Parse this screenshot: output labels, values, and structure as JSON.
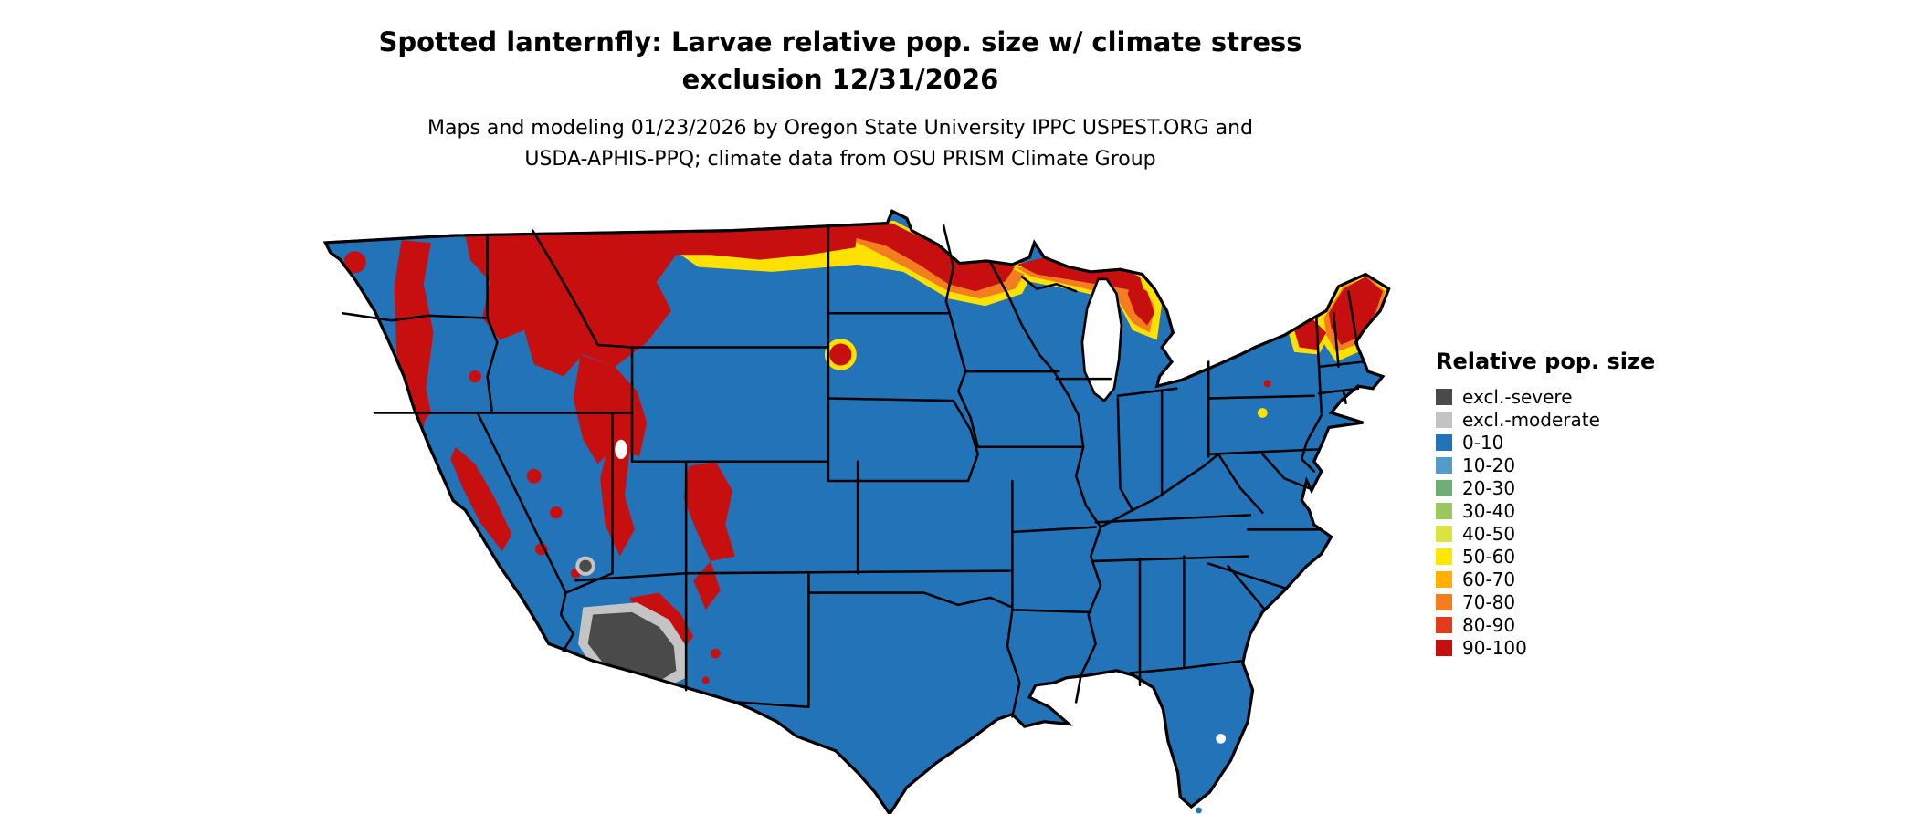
{
  "header": {
    "title_line1": "Spotted lanternfly: Larvae relative pop. size w/ climate stress",
    "title_line2": "exclusion 12/31/2026",
    "subtitle_line1": "Maps and modeling 01/23/2026 by Oregon State University IPPC USPEST.ORG and",
    "subtitle_line2": "USDA-APHIS-PPQ; climate data from OSU PRISM Climate Group"
  },
  "legend": {
    "title": "Relative pop. size",
    "items": [
      {
        "label": "excl.-severe",
        "color": "#4a4a4a"
      },
      {
        "label": "excl.-moderate",
        "color": "#c4c4c4"
      },
      {
        "label": "0-10",
        "color": "#2273b8"
      },
      {
        "label": "10-20",
        "color": "#549bc7"
      },
      {
        "label": "20-30",
        "color": "#6fae77"
      },
      {
        "label": "30-40",
        "color": "#99c95c"
      },
      {
        "label": "40-50",
        "color": "#d9e541"
      },
      {
        "label": "50-60",
        "color": "#ffe900"
      },
      {
        "label": "60-70",
        "color": "#ffb000"
      },
      {
        "label": "70-80",
        "color": "#f47d1f"
      },
      {
        "label": "80-90",
        "color": "#e23b1e"
      },
      {
        "label": "90-100",
        "color": "#c80f0f"
      }
    ]
  },
  "map": {
    "name": "Contiguous United States",
    "palette": {
      "base_fill": "#2273b8",
      "high_risk": "#c80f0f",
      "transition_orange": "#f47d1f",
      "transition_yellow": "#ffe100",
      "excl_severe": "#4a4a4a",
      "excl_moderate": "#c4c4c4",
      "water": "#ffffff",
      "state_border": "#000000"
    },
    "regions_summary": [
      {
        "area": "Central, southern and eastern US (Plains, Midwest, South, Mid-Atlantic)",
        "class": "0-10"
      },
      {
        "area": "Cascades, northern Rockies, western Montana, Yellowstone, Utah and Colorado mountains, Sierra Nevada",
        "class": "90-100"
      },
      {
        "area": "Northern Minnesota, northern Wisconsin, Upper Michigan, northern Lower Michigan",
        "class": "50-100 band"
      },
      {
        "area": "Adirondacks, Vermont, New Hampshire, Maine",
        "class": "50-100 band"
      },
      {
        "area": "Southern Arizona desert (and nearby spots)",
        "class": "excl.-severe with excl.-moderate fringe"
      }
    ]
  }
}
